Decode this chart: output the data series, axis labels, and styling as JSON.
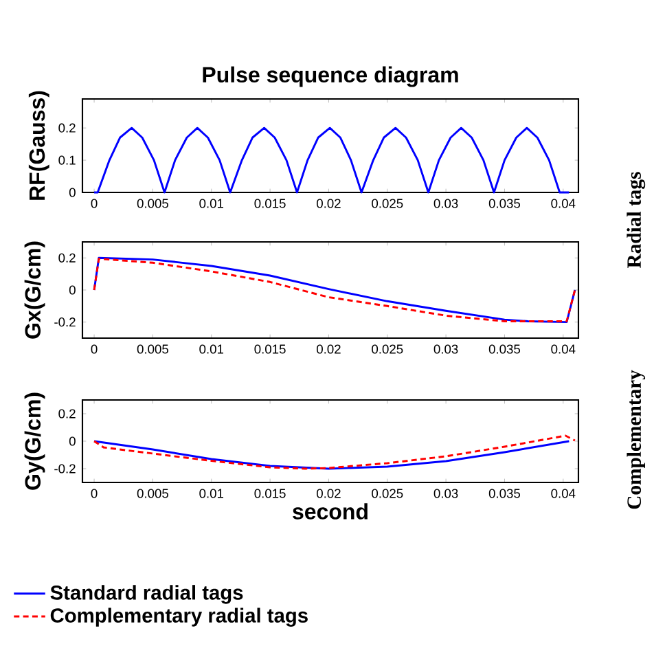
{
  "chart_data": [
    {
      "type": "line",
      "title": "Pulse sequence diagram",
      "ylabel": "RF(Gauss)",
      "xlim": [
        -0.001,
        0.0413
      ],
      "ylim": [
        0,
        0.29
      ],
      "xticks": [
        0,
        0.005,
        0.01,
        0.015,
        0.02,
        0.025,
        0.03,
        0.035,
        0.04
      ],
      "yticks": [
        0,
        0.1,
        0.2
      ],
      "series": [
        {
          "color": "#0000ff",
          "line_style": "solid",
          "x": [
            0,
            0.0003,
            0.0013,
            0.0022,
            0.0032,
            0.0041,
            0.0051,
            0.006,
            0.0069,
            0.0079,
            0.0088,
            0.0097,
            0.0107,
            0.0116,
            0.0126,
            0.0135,
            0.0145,
            0.0154,
            0.0164,
            0.0173,
            0.0182,
            0.0191,
            0.0201,
            0.021,
            0.0219,
            0.0228,
            0.0238,
            0.0247,
            0.0257,
            0.0266,
            0.0276,
            0.0285,
            0.0294,
            0.0304,
            0.0313,
            0.0322,
            0.0332,
            0.0341,
            0.035,
            0.036,
            0.0369,
            0.0378,
            0.0388,
            0.0397,
            0.0405
          ],
          "values": [
            0,
            0,
            0.1,
            0.17,
            0.2,
            0.17,
            0.1,
            0,
            0.1,
            0.17,
            0.2,
            0.17,
            0.1,
            0,
            0.1,
            0.17,
            0.2,
            0.17,
            0.1,
            0,
            0.1,
            0.17,
            0.2,
            0.17,
            0.1,
            0,
            0.1,
            0.17,
            0.2,
            0.17,
            0.1,
            0,
            0.1,
            0.17,
            0.2,
            0.17,
            0.1,
            0,
            0.1,
            0.17,
            0.2,
            0.17,
            0.1,
            0,
            0
          ]
        }
      ]
    },
    {
      "type": "line",
      "ylabel": "Gx(G/cm)",
      "xlim": [
        -0.001,
        0.0413
      ],
      "ylim": [
        -0.3,
        0.3
      ],
      "xticks": [
        0,
        0.005,
        0.01,
        0.015,
        0.02,
        0.025,
        0.03,
        0.035,
        0.04
      ],
      "yticks": [
        -0.2,
        0,
        0.2
      ],
      "series": [
        {
          "color": "#0000ff",
          "line_style": "solid",
          "x": [
            0,
            0.0004,
            0.005,
            0.01,
            0.015,
            0.02,
            0.025,
            0.03,
            0.035,
            0.037,
            0.0403,
            0.041
          ],
          "values": [
            0,
            0.2,
            0.19,
            0.15,
            0.09,
            0.006,
            -0.07,
            -0.13,
            -0.185,
            -0.195,
            -0.2,
            0
          ]
        },
        {
          "color": "#ff0000",
          "line_style": "dashed",
          "x": [
            0,
            0.0004,
            0.005,
            0.01,
            0.015,
            0.02,
            0.025,
            0.03,
            0.035,
            0.0403,
            0.041
          ],
          "values": [
            0,
            0.195,
            0.17,
            0.116,
            0.05,
            -0.045,
            -0.1,
            -0.16,
            -0.195,
            -0.195,
            0
          ]
        }
      ]
    },
    {
      "type": "line",
      "ylabel": "Gy(G/cm)",
      "xlabel": "second",
      "xlim": [
        -0.001,
        0.0413
      ],
      "ylim": [
        -0.3,
        0.3
      ],
      "xticks": [
        0,
        0.005,
        0.01,
        0.015,
        0.02,
        0.025,
        0.03,
        0.035,
        0.04
      ],
      "yticks": [
        -0.2,
        0,
        0.2
      ],
      "legend": "bottom",
      "annotations": [
        "Radial tags",
        "Complementary"
      ],
      "series": [
        {
          "name": "Standard radial tags",
          "color": "#0000ff",
          "line_style": "solid",
          "x": [
            0,
            0.005,
            0.01,
            0.015,
            0.02,
            0.025,
            0.03,
            0.035,
            0.0405
          ],
          "values": [
            0,
            -0.06,
            -0.13,
            -0.18,
            -0.2,
            -0.185,
            -0.145,
            -0.08,
            0
          ]
        },
        {
          "name": "Complementary radial tags",
          "color": "#ff0000",
          "line_style": "dashed",
          "x": [
            0,
            0.0008,
            0.005,
            0.01,
            0.015,
            0.018,
            0.02,
            0.025,
            0.03,
            0.035,
            0.0402,
            0.041
          ],
          "values": [
            0,
            -0.045,
            -0.09,
            -0.143,
            -0.19,
            -0.2,
            -0.195,
            -0.16,
            -0.11,
            -0.04,
            0.04,
            0.005
          ]
        }
      ]
    }
  ]
}
